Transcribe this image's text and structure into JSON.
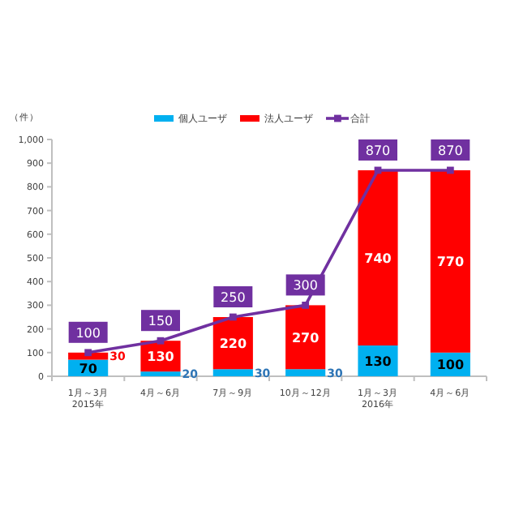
{
  "chart_data": {
    "type": "bar",
    "stacked": true,
    "ylabel": "（件）",
    "categories": [
      "1月～3月\n2015年",
      "4月～6月",
      "7月～9月",
      "10月～12月",
      "1月～3月\n2016年",
      "4月～6月"
    ],
    "series": [
      {
        "name": "個人ユーザ",
        "color": "#00b0f0",
        "values": [
          70,
          20,
          30,
          30,
          130,
          100
        ]
      },
      {
        "name": "法人ユーザ",
        "color": "#ff0000",
        "values": [
          30,
          130,
          220,
          270,
          740,
          770
        ]
      },
      {
        "name": "合計",
        "type": "line",
        "color": "#7030a0",
        "marker": "square",
        "values": [
          100,
          150,
          250,
          300,
          870,
          870
        ]
      }
    ],
    "ylim": [
      0,
      1000
    ],
    "yticks": [
      0,
      100,
      200,
      300,
      400,
      500,
      600,
      700,
      800,
      900,
      {
        "value": 1000,
        "label": "1,000"
      }
    ],
    "grid": false,
    "legend": "top",
    "data_labels": true
  }
}
